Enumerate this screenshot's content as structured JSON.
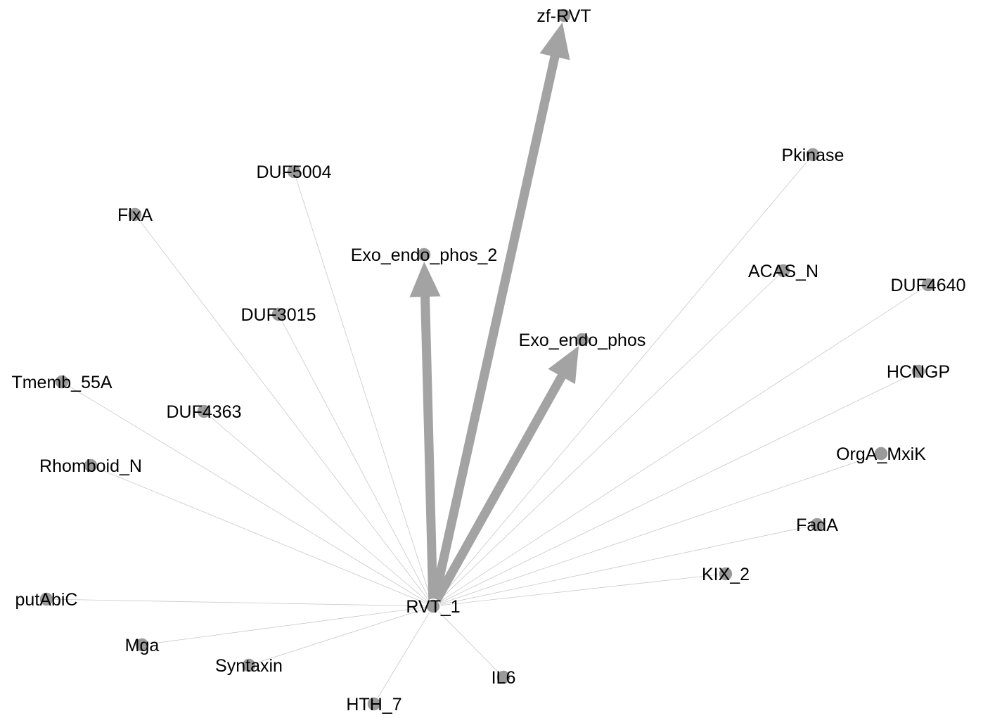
{
  "graph": {
    "nodes": [
      {
        "id": "RVT_1",
        "label": "RVT_1"
      },
      {
        "id": "zf-RVT",
        "label": "zf-RVT"
      },
      {
        "id": "Exo_endo_phos_2",
        "label": "Exo_endo_phos_2"
      },
      {
        "id": "Exo_endo_phos",
        "label": "Exo_endo_phos"
      },
      {
        "id": "DUF5004",
        "label": "DUF5004"
      },
      {
        "id": "FlxA",
        "label": "FlxA"
      },
      {
        "id": "DUF3015",
        "label": "DUF3015"
      },
      {
        "id": "Tmemb_55A",
        "label": "Tmemb_55A"
      },
      {
        "id": "DUF4363",
        "label": "DUF4363"
      },
      {
        "id": "Rhomboid_N",
        "label": "Rhomboid_N"
      },
      {
        "id": "putAbiC",
        "label": "putAbiC"
      },
      {
        "id": "Mga",
        "label": "Mga"
      },
      {
        "id": "Syntaxin",
        "label": "Syntaxin"
      },
      {
        "id": "HTH_7",
        "label": "HTH_7"
      },
      {
        "id": "IL6",
        "label": "IL6"
      },
      {
        "id": "KIX_2",
        "label": "KIX_2"
      },
      {
        "id": "FadA",
        "label": "FadA"
      },
      {
        "id": "OrgA_MxiK",
        "label": "OrgA_MxiK"
      },
      {
        "id": "HCNGP",
        "label": "HCNGP"
      },
      {
        "id": "DUF4640",
        "label": "DUF4640"
      },
      {
        "id": "ACAS_N",
        "label": "ACAS_N"
      },
      {
        "id": "Pkinase",
        "label": "Pkinase"
      }
    ],
    "edges": [
      {
        "source": "RVT_1",
        "target": "zf-RVT",
        "weight": 3,
        "directed": true
      },
      {
        "source": "RVT_1",
        "target": "Exo_endo_phos_2",
        "weight": 3,
        "directed": true
      },
      {
        "source": "RVT_1",
        "target": "Exo_endo_phos",
        "weight": 3,
        "directed": true
      },
      {
        "source": "RVT_1",
        "target": "DUF5004",
        "weight": 1,
        "directed": false
      },
      {
        "source": "RVT_1",
        "target": "FlxA",
        "weight": 1,
        "directed": false
      },
      {
        "source": "RVT_1",
        "target": "DUF3015",
        "weight": 1,
        "directed": false
      },
      {
        "source": "RVT_1",
        "target": "Tmemb_55A",
        "weight": 1,
        "directed": false
      },
      {
        "source": "RVT_1",
        "target": "DUF4363",
        "weight": 1,
        "directed": false
      },
      {
        "source": "RVT_1",
        "target": "Rhomboid_N",
        "weight": 1,
        "directed": false
      },
      {
        "source": "RVT_1",
        "target": "putAbiC",
        "weight": 1,
        "directed": false
      },
      {
        "source": "RVT_1",
        "target": "Mga",
        "weight": 1,
        "directed": false
      },
      {
        "source": "RVT_1",
        "target": "Syntaxin",
        "weight": 1,
        "directed": false
      },
      {
        "source": "RVT_1",
        "target": "HTH_7",
        "weight": 1,
        "directed": false
      },
      {
        "source": "RVT_1",
        "target": "IL6",
        "weight": 1,
        "directed": false
      },
      {
        "source": "RVT_1",
        "target": "KIX_2",
        "weight": 1,
        "directed": false
      },
      {
        "source": "RVT_1",
        "target": "FadA",
        "weight": 1,
        "directed": false
      },
      {
        "source": "RVT_1",
        "target": "OrgA_MxiK",
        "weight": 1,
        "directed": false
      },
      {
        "source": "RVT_1",
        "target": "HCNGP",
        "weight": 1,
        "directed": false
      },
      {
        "source": "RVT_1",
        "target": "DUF4640",
        "weight": 1,
        "directed": false
      },
      {
        "source": "RVT_1",
        "target": "ACAS_N",
        "weight": 1,
        "directed": false
      },
      {
        "source": "RVT_1",
        "target": "Pkinase",
        "weight": 1,
        "directed": false
      }
    ]
  },
  "colors": {
    "node_fill": "#9a9a9a",
    "thick_edge": "#a3a3a3",
    "thin_edge": "#c8c8c8",
    "background": "#ffffff"
  }
}
